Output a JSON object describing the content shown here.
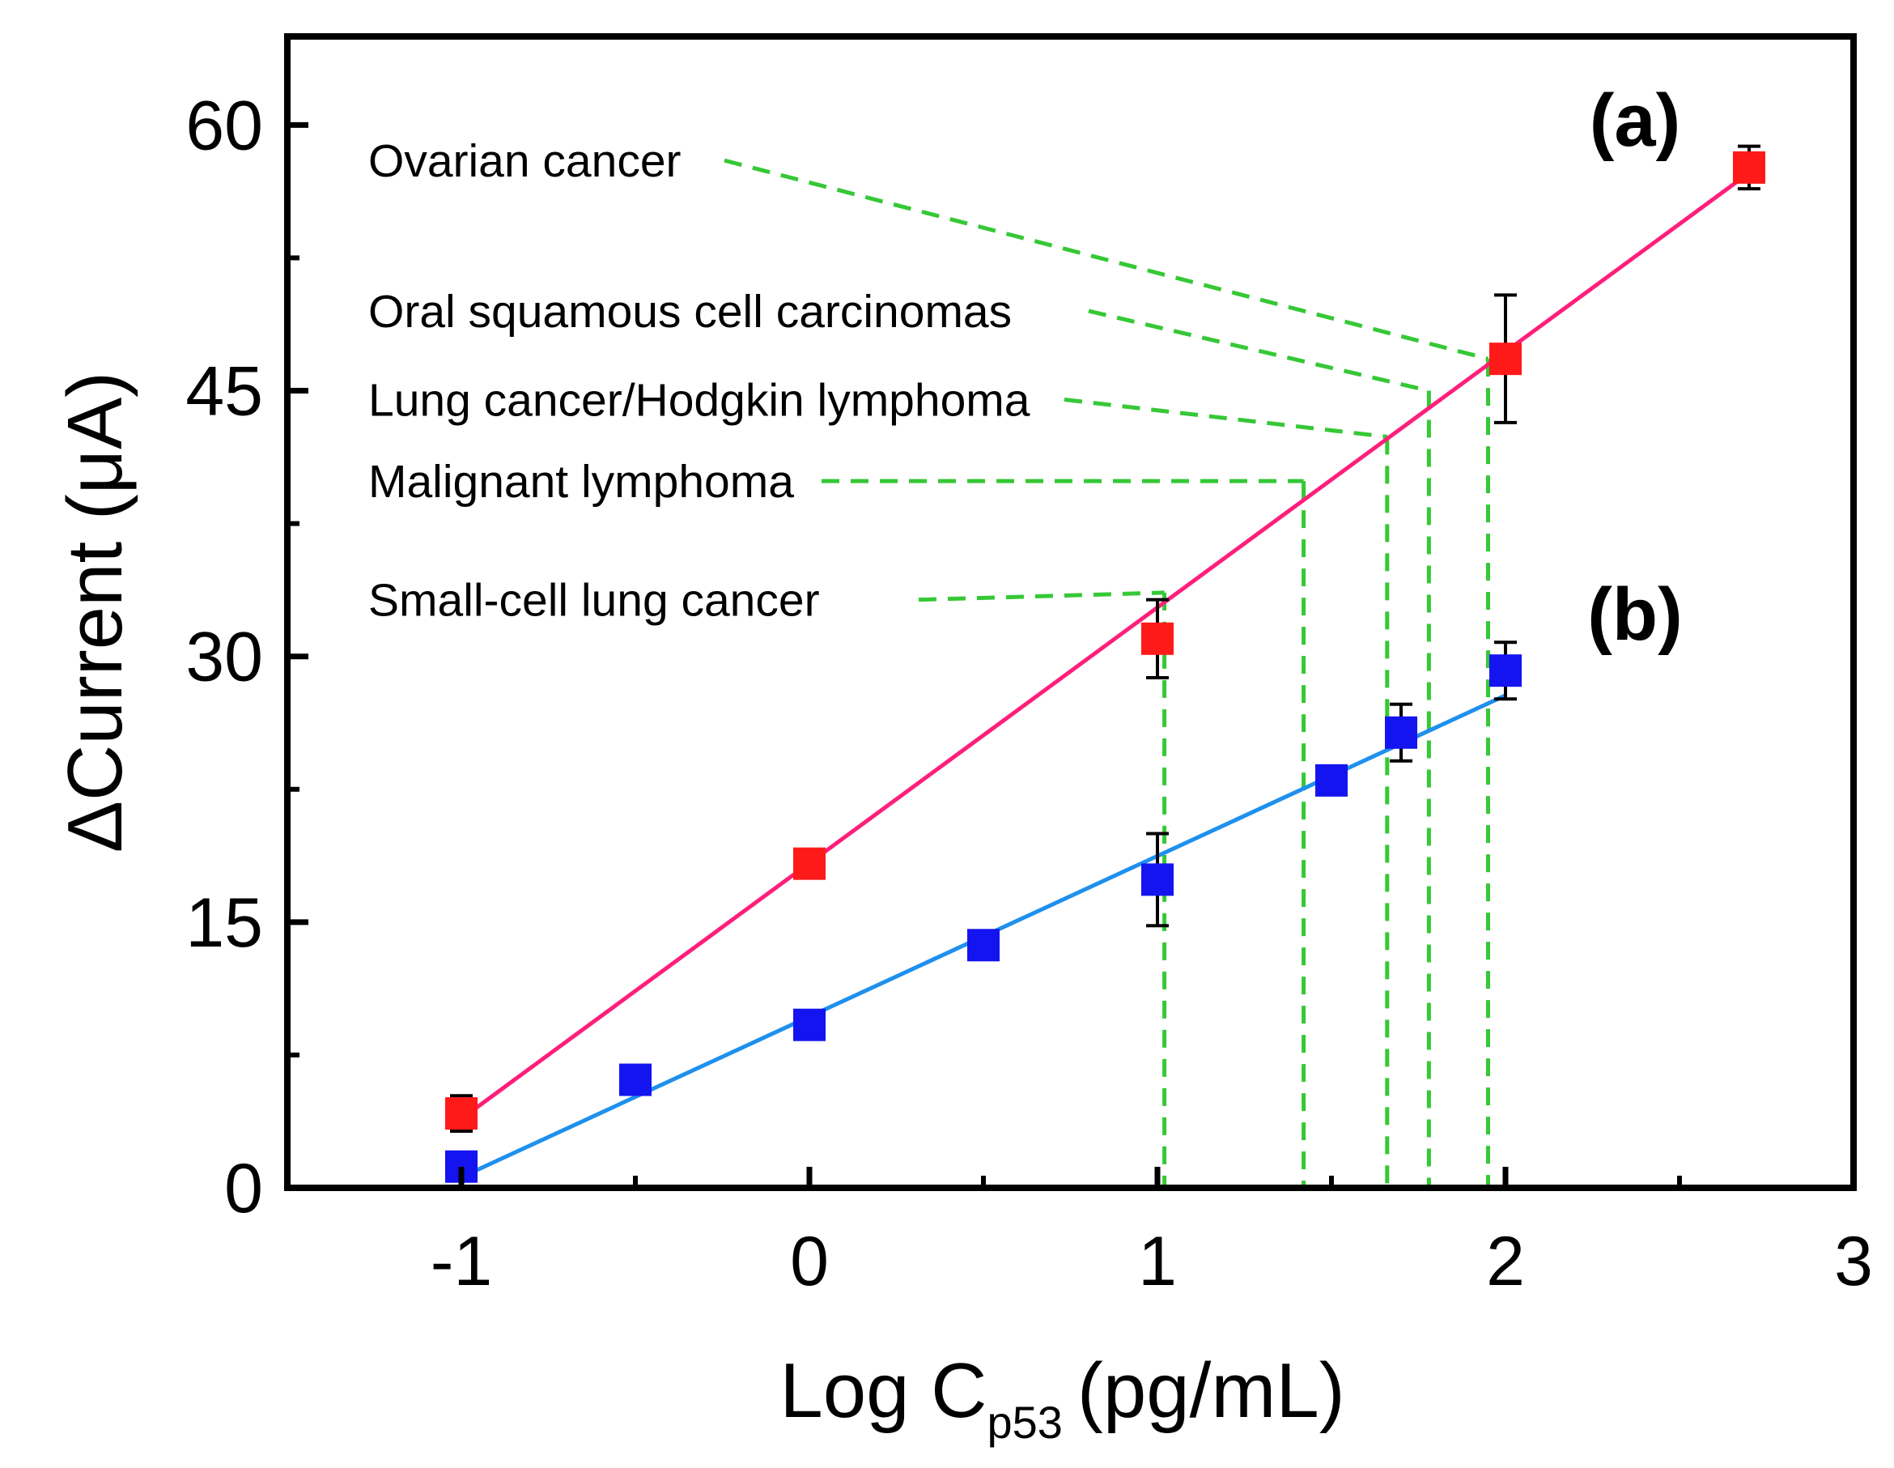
{
  "chart_data": {
    "type": "scatter",
    "title": "",
    "xlabel": "Log C",
    "xlabel_subscript": "p53",
    "xlabel_units": "(pg/mL)",
    "ylabel": "ΔCurrent (μA)",
    "xlim": [
      -1.5,
      3
    ],
    "ylim": [
      0,
      65
    ],
    "x_ticks": [
      -1,
      0,
      1,
      2,
      3
    ],
    "x_tick_labels": [
      "-1",
      "0",
      "1",
      "2",
      "3"
    ],
    "x_minor_ticks": [
      -0.5,
      0.5,
      1.5,
      2.5
    ],
    "y_ticks": [
      0,
      15,
      30,
      45,
      60
    ],
    "y_tick_labels": [
      "0",
      "15",
      "30",
      "45",
      "60"
    ],
    "y_minor_ticks": [
      7.5,
      22.5,
      37.5,
      52.5
    ],
    "grid": false,
    "series": [
      {
        "name": "(a)",
        "marker_color": "#ff1a1a",
        "line_color": "#ff1f7a",
        "x": [
          -1,
          0,
          1,
          2,
          2.7
        ],
        "y": [
          4.2,
          18.3,
          31.0,
          46.8,
          57.6
        ],
        "err": [
          1.0,
          0.6,
          2.2,
          3.6,
          1.2
        ],
        "fit": {
          "x": [
            -1,
            2.7
          ],
          "y": [
            3.9,
            57.3
          ]
        }
      },
      {
        "name": "(b)",
        "marker_color": "#1414f0",
        "line_color": "#1e90ee",
        "x": [
          -1,
          -0.5,
          0,
          0.5,
          1,
          1.5,
          1.7,
          2
        ],
        "y": [
          1.2,
          6.1,
          9.2,
          13.7,
          17.4,
          23.0,
          25.7,
          29.2
        ],
        "err": [
          0.6,
          0.5,
          0.5,
          0.5,
          2.6,
          0.5,
          1.6,
          1.6
        ],
        "fit": {
          "x": [
            -1,
            2
          ],
          "y": [
            0.6,
            27.8
          ]
        }
      }
    ],
    "panel_labels": [
      {
        "text": "(a)",
        "series": "(a)"
      },
      {
        "text": "(b)",
        "series": "(b)"
      }
    ],
    "annotations": [
      {
        "label": "Ovarian cancer",
        "x": 1.95,
        "y": 46.8,
        "label_x": -0.9,
        "label_y": 58.0
      },
      {
        "label": "Oral squamous cell carcinomas",
        "x": 1.78,
        "y": 45.0,
        "label_x": 0.0,
        "label_y": 49.5
      },
      {
        "label": "Lung cancer/Hodgkin lymphoma",
        "x": 1.66,
        "y": 42.4,
        "label_x": 0.25,
        "label_y": 44.5
      },
      {
        "label": "Malignant lymphoma",
        "x": 1.42,
        "y": 39.9,
        "label_x": -0.35,
        "label_y": 39.9
      },
      {
        "label": "Small-cell lung cancer",
        "x": 1.02,
        "y": 33.6,
        "label_x": -0.45,
        "label_y": 33.2
      }
    ],
    "annotation_color": "#36c836"
  }
}
